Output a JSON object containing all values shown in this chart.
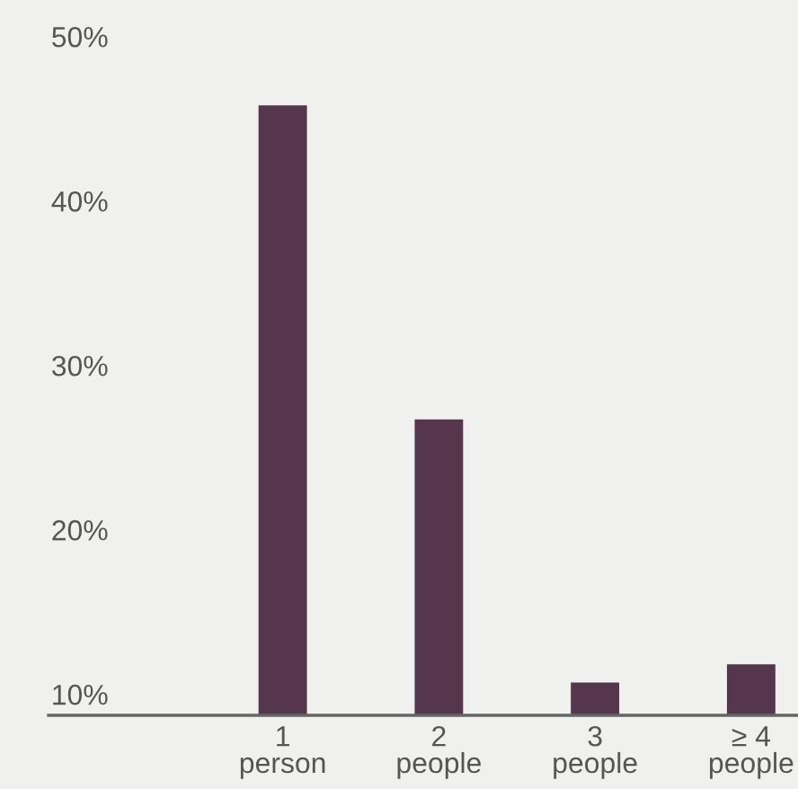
{
  "chart_data": {
    "type": "bar",
    "categories": [
      "1\nperson",
      "2\npeople",
      "3\npeople",
      "≥ 4\npeople"
    ],
    "values": [
      46.0,
      26.9,
      10.9,
      12.0
    ],
    "color": "#56364d",
    "ylim": [
      8.9,
      50
    ],
    "yticks": [
      {
        "value": 10,
        "label": "10%"
      },
      {
        "value": 20,
        "label": "20%"
      },
      {
        "value": 30,
        "label": "30%"
      },
      {
        "value": 40,
        "label": "40%"
      },
      {
        "value": 50,
        "label": "50%"
      }
    ],
    "grid": false,
    "legend": false
  }
}
